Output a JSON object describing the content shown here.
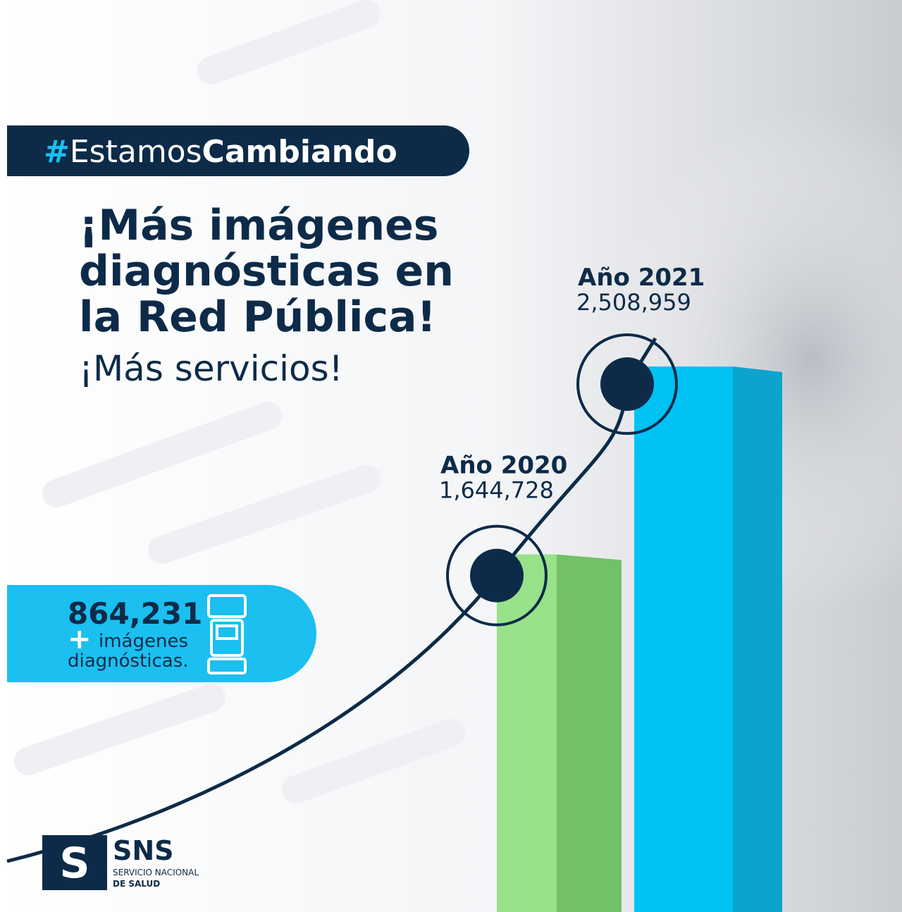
{
  "banner": {
    "hash": "#",
    "light": "Estamos",
    "bold": "Cambiando"
  },
  "chart_data": {
    "type": "bar",
    "title": [
      "¡Más imágenes",
      "diagnósticas en",
      "la Red Pública!"
    ],
    "subtitle": "¡Más servicios!",
    "categories": [
      "Año 2020",
      "Año 2021"
    ],
    "values": [
      1644728,
      2508959
    ],
    "value_labels": [
      "1,644,728",
      "2,508,959"
    ],
    "colors": [
      "#98e28a",
      "#00c2f5"
    ],
    "side_colors": [
      "#72c067",
      "#0ca4cd"
    ],
    "annotation": {
      "value": 864231,
      "value_label": "864,231",
      "plus": "+",
      "lines": [
        "imágenes",
        "diagnósticas."
      ]
    }
  },
  "logo": {
    "name": "SNS",
    "line1": "SERVICIO NACIONAL",
    "line2": "DE SALUD"
  }
}
